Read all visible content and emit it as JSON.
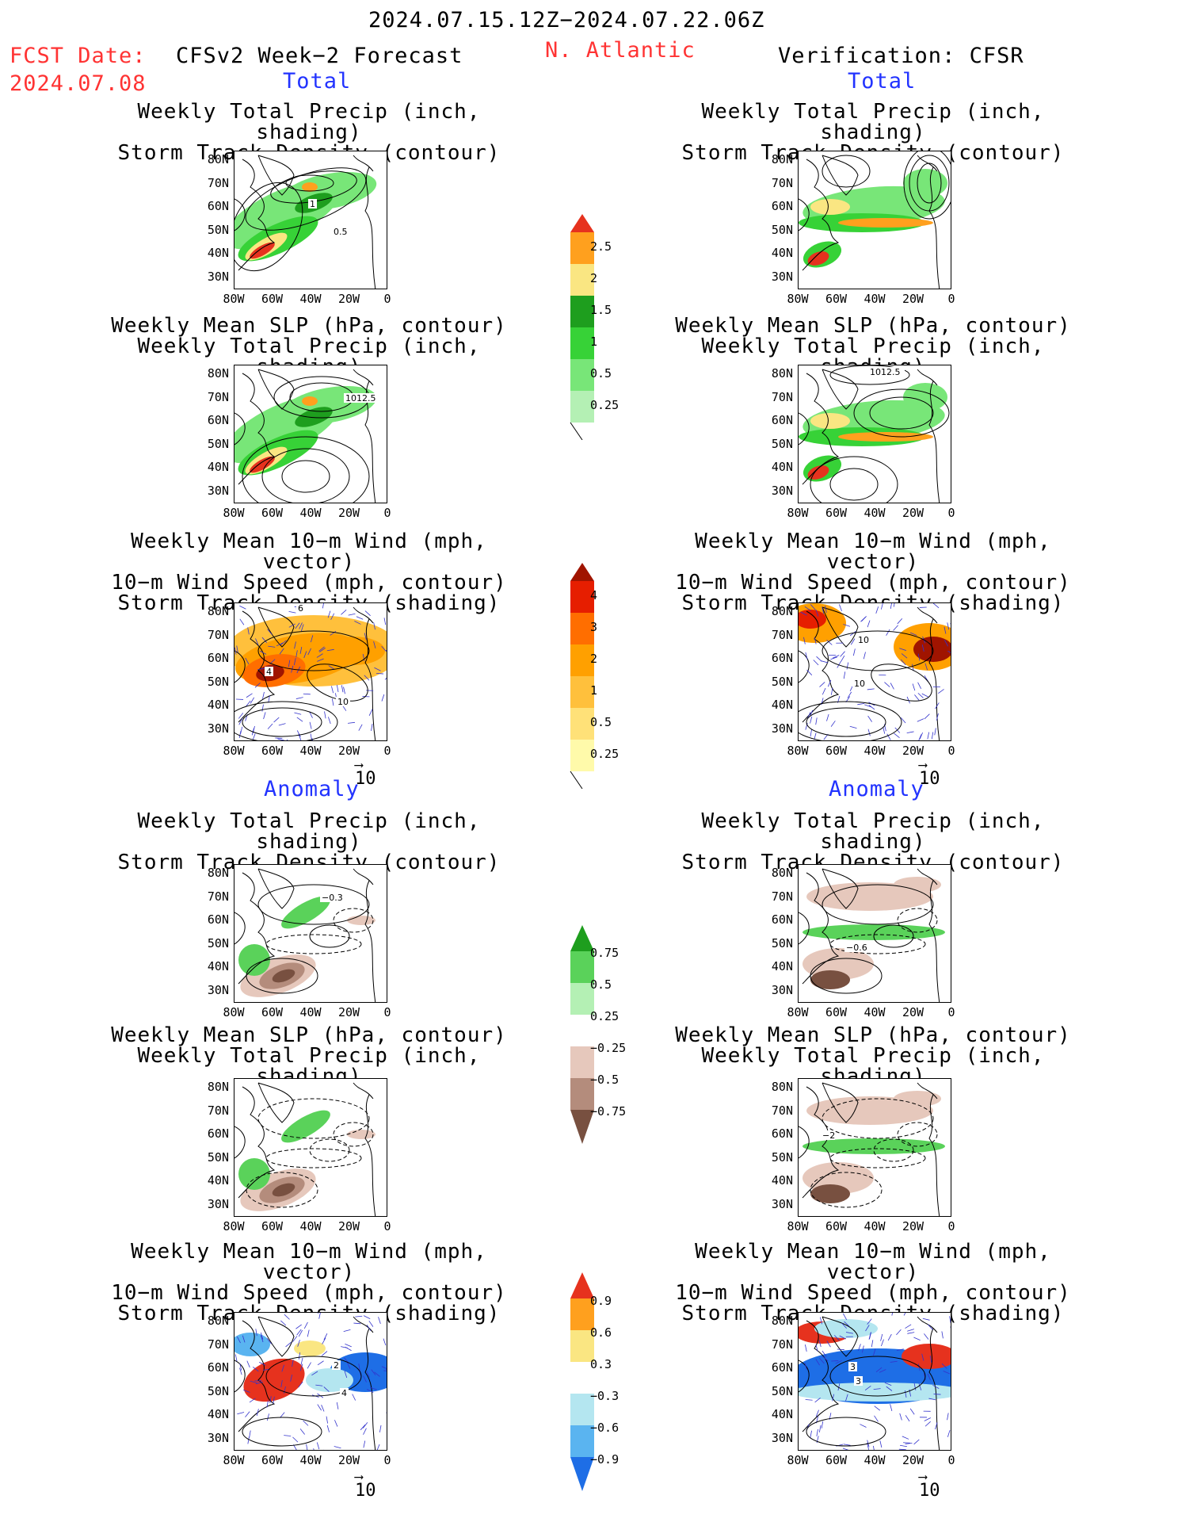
{
  "header": {
    "period": "2024.07.15.12Z−2024.07.22.06Z",
    "fcst_date_label": "FCST Date:",
    "fcst_date_value": "2024.07.08",
    "model_label": "CFSv2 Week−2 Forecast",
    "region": "N. Atlantic",
    "verification_label": "Verification: CFSR"
  },
  "sections": {
    "total_left": "Total",
    "total_right": "Total",
    "anomaly_left": "Anomaly",
    "anomaly_right": "Anomaly"
  },
  "panel_titles": {
    "precip_storm": [
      "Weekly Total Precip (inch, shading)",
      "Storm Track Density (contour)"
    ],
    "slp_precip": [
      "Weekly Mean SLP (hPa, contour)",
      "Weekly Total Precip (inch, shading)"
    ],
    "wind_storm": [
      "Weekly Mean 10−m Wind (mph, vector)",
      "10−m Wind Speed (mph, contour)",
      "Storm Track Density (shading)"
    ]
  },
  "axes": {
    "lat_ticks": [
      "80N",
      "70N",
      "60N",
      "50N",
      "40N",
      "30N"
    ],
    "lon_ticks": [
      "80W",
      "60W",
      "40W",
      "20W",
      "0"
    ]
  },
  "vector_ref": "10",
  "colorbars": {
    "precip_total": [
      "2.5",
      "2",
      "1.5",
      "1",
      "0.5",
      "0.25"
    ],
    "storm_total": [
      "4",
      "3",
      "2",
      "1",
      "0.5",
      "0.25"
    ],
    "precip_anom": [
      "0.75",
      "0.5",
      "0.25",
      "−0.25",
      "−0.5",
      "−0.75"
    ],
    "storm_anom": [
      "0.9",
      "0.6",
      "0.3",
      "−0.3",
      "−0.6",
      "−0.9"
    ]
  },
  "contour_labels": {
    "p1_left_a": "1",
    "p1_left_b": "0.5",
    "p2_left": "1012.5",
    "p2_right": "1012.5",
    "p3_left_a": "6",
    "p3_left_b": "4",
    "p3_left_c": "10",
    "p3_right_a": "10",
    "p3_right_b": "10",
    "p4_left": "−0.3",
    "p4_right": "−0.6",
    "p5_right": "−2",
    "p6_left_a": "2",
    "p6_left_b": "4",
    "p6_right_a": "3",
    "p6_right_b": "3"
  },
  "colors": {
    "precip": [
      "#b4f0b4",
      "#78e678",
      "#37d237",
      "#1e9e1e",
      "#fae682",
      "#ffa01e",
      "#e6321e"
    ],
    "storm": [
      "#fffaaa",
      "#ffe178",
      "#ffc03c",
      "#ffa000",
      "#ff6e00",
      "#e61e00",
      "#a01400"
    ],
    "precip_anom_pos": [
      "#b4f0b4",
      "#5ad25a",
      "#1e9e1e"
    ],
    "precip_anom_neg": [
      "#e6c8bc",
      "#b48c7c",
      "#785040"
    ],
    "storm_anom_pos": [
      "#fae682",
      "#ffa01e",
      "#e6321e"
    ],
    "storm_anom_neg": [
      "#b4e6f0",
      "#5ab4f0",
      "#1e6ee6"
    ]
  }
}
